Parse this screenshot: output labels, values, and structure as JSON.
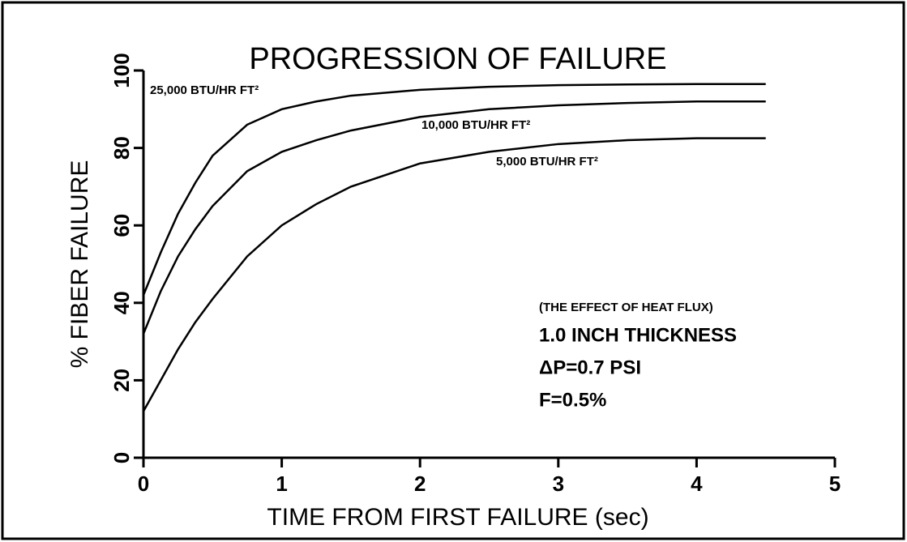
{
  "chart_data": {
    "type": "line",
    "title": "PROGRESSION OF FAILURE",
    "xlabel": "TIME FROM FIRST FAILURE (sec)",
    "ylabel": "% FIBER FAILURE",
    "x": [
      0,
      0.125,
      0.25,
      0.375,
      0.5,
      0.75,
      1,
      1.25,
      1.5,
      2,
      2.5,
      3,
      3.5,
      4,
      4.5
    ],
    "series": [
      {
        "name": "25,000 BTU/HR FT²",
        "color": "#000000",
        "values": [
          42,
          53,
          63,
          71,
          78,
          86,
          90,
          92,
          93.5,
          95,
          95.8,
          96.2,
          96.4,
          96.5,
          96.5
        ]
      },
      {
        "name": "10,000 BTU/HR FT²",
        "color": "#000000",
        "values": [
          32,
          43,
          52,
          59,
          65,
          74,
          79,
          82,
          84.5,
          88,
          90,
          91,
          91.6,
          92,
          92
        ]
      },
      {
        "name": "5,000 BTU/HR FT²",
        "color": "#000000",
        "values": [
          12,
          20,
          28,
          35,
          41,
          52,
          60,
          65.5,
          70,
          76,
          79,
          81,
          82,
          82.5,
          82.5
        ]
      }
    ],
    "xlim": [
      0,
      5
    ],
    "xticks": [
      0,
      1,
      2,
      3,
      4,
      5
    ],
    "ylim": [
      0,
      100
    ],
    "yticks": [
      0,
      20,
      40,
      60,
      80,
      100
    ],
    "annotations": [
      "(THE EFFECT OF HEAT FLUX)",
      "1.0 INCH THICKNESS",
      "ΔP=0.7 PSI",
      "F=0.5%"
    ]
  }
}
